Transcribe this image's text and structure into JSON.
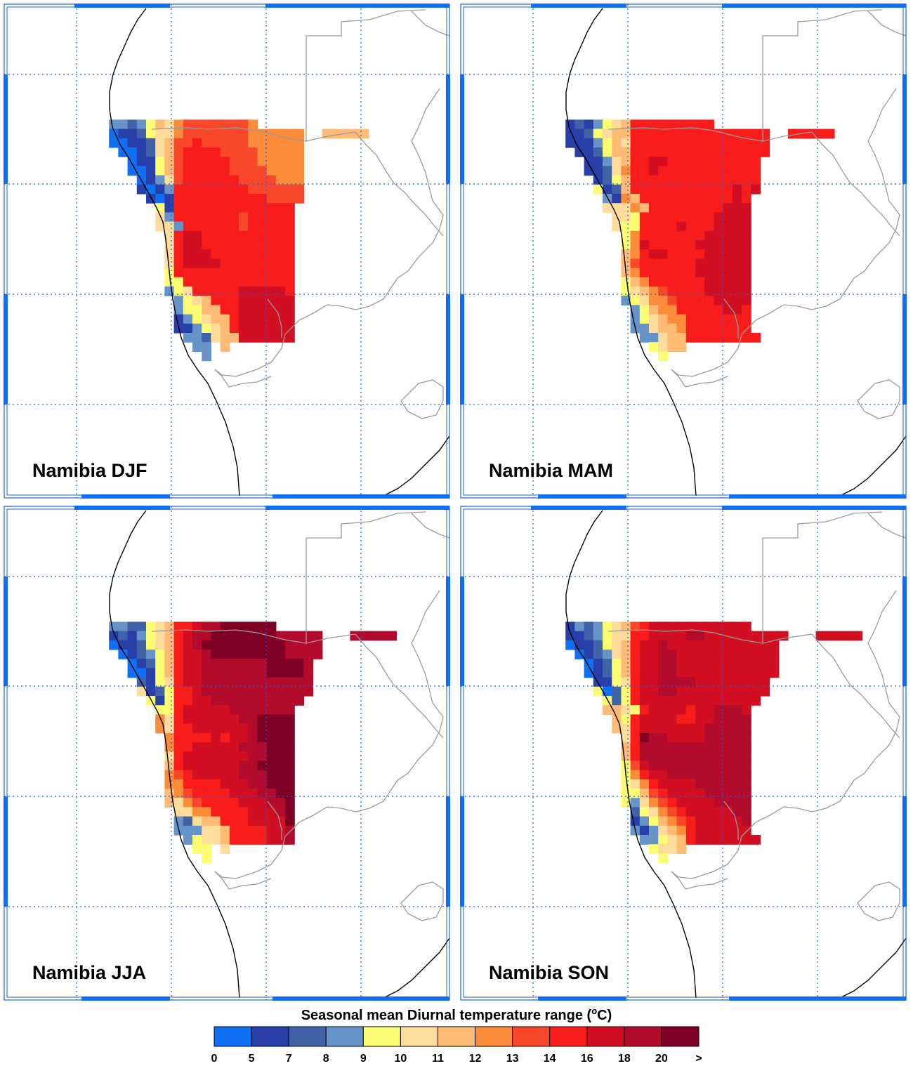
{
  "chart_data": {
    "type": "heatmap",
    "title": "Seasonal mean Diurnal temperature range",
    "unit_base": "o",
    "unit_sup": "o",
    "unit_letter": "C",
    "colorbar": {
      "tick_labels": [
        "0",
        "5",
        "7",
        "8",
        "9",
        "10",
        "11",
        "12",
        "13",
        "14",
        "16",
        "18",
        "20",
        ">"
      ],
      "colors": [
        "#0f6ff5",
        "#283ea8",
        "#3f62a8",
        "#6694c8",
        "#fcfd72",
        "#fddc9c",
        "#fdbb76",
        "#fb8c39",
        "#f9472c",
        "#f81c1a",
        "#d20f22",
        "#b30b2b",
        "#7e0125"
      ]
    },
    "panels": [
      {
        "label": "Namibia DJF",
        "grid": [
          ". . . . . . . . . . . . . . . . . . . . . . . . . . . . . . . . . . . . . . . . . . . . . . . . . .",
          ". . . . . . . . . . . . . . . . . . . . . . . . . . . . . . . . . . . . . . . . . . . . . . . . . .",
          ". . . . . . . . . . . . . . . . . . . . . . . . . . . . . . . . . . . . . . . . . . . . . . . . . .",
          ". . . . . . . . . . . . . . . . . . . . . . . . . . . . . . . . . . . . . . . . . . . . . . . . . .",
          ". . . . . . . . . . . . . . . . . . . . . . . . . . . . . . . . . . . . . . . . . . . . . . . . . .",
          ". . . . . . . . . . . . . . . . . . . . . . . . . . . . . . . . . . . . . . . . . . . . . . . . . .",
          ". . . . . . . . . . . . . . . . . . . . . . . . . . . . . . . . . . . . . . . . . . . . . . . . . .",
          ". . . . . . . . . . . . . . . . . . . . . . . . . . . . . . . . . . . . . . . . . . . . . . . . . .",
          ". . . . . . . . . . . . . . . . . . . . . . . . . . . . . . . . . . . . . . . . . . . . . . . . . .",
          ". . . . . . . . . . . . . . . . . . . . . . . . . . . . . . . . . . . . . . . . . . . . . . . . . .",
          ". . . . . . . . . . . . . . . . . . . . . . . . . . . . . . . . . . . . . . . . . . . . . . . . . .",
          ". . . . . . . . . . . . . . . . . . . . . . . . . . . . . . . . . . . . . . . . . . . . . . . . . .",
          ". . . . . . . . . . . 3 3 2 3 4 6 5 7 8 8 8 8 8 8 8 7 . . . . . . . . . . . . . . . . . . . . . . .",
          ". . . . . . . . . . . 0 1 1 2 4 5 5 7 8 8 8 8 8 8 8 7 7 7 7 7 7 . . 6 6 6 6 6 . . . . . . . . . . .",
          ". . . . . . . . . . . 0 0 1 1 2 5 6 8 8 9 8 8 8 8 8 7 7 7 7 7 7 . . . . . . . . . . . . . . . . . .",
          ". . . . . . . . . . . . 0 0 1 2 5 6 8 9 9 9 9 8 8 8 8 7 7 7 7 7 . . . . . . . . . . . . . . . . . .",
          ". . . . . . . . . . . . . 0 1 1 4 6 8 9 9 9 9 9 8 8 8 7 7 7 7 7 . . . . . . . . . . . . . . . . . .",
          ". . . . . . . . . . . . . 0 0 1 4 6 8 9 9 9 9 9 8 8 8 8 7 7 7 7 . . . . . . . . . . . . . . . . . .",
          ". . . . . . . . . . . . . . 0 1 3 5 8 9 9 9 9 9 9 8 8 8 8 7 7 7 . . . . . . . . . . . . . . . . . .",
          ". . . . . . . . . . . . . . 1 0 1 3 9 9 9 9 9 9 9 9 8 8 8 8 8 8 . . . . . . . . . . . . . . . . . .",
          ". . . . . . . . . . . . . . . 1 0 1 9 9 9 9 9 9 9 9 9 9 8 8 8 8 . . . . . . . . . . . . . . . . . .",
          ". . . . . . . . . . . . . . . . 4 1 9 9 9 9 9 9 9 9 9 9 9 9 9 . . . . . . . . . . . . . . . . . . .",
          ". . . . . . . . . . . . . . . . 5 3 9 9 9 9 9 9 9 8 9 9 9 9 9 . . . . . . . . . . . . . . . . . . .",
          ". . . . . . . . . . . . . . . . 5 5 3 9 9 9 9 9 9 8 9 9 9 9 9 . . . . . . . . . . . . . . . . . . .",
          ". . . . . . . . . . . . . . . . . 5 9 10 10 9 9 9 9 9 9 9 9 9 9 . . . . . . . . . . . . . . . . . . .",
          ". . . . . . . . . . . . . . . . . 5 9 10 10 9 9 9 9 9 9 9 9 9 9 . . . . . . . . . . . . . . . . . . .",
          ". . . . . . . . . . . . . . . . . 5 9 10 10 10 9 9 9 9 9 9 9 9 9 . . . . . . . . . . . . . . . . . . .",
          ". . . . . . . . . . . . . . . . . 5 9 10 10 10 10 9 9 9 9 9 9 9 9 . . . . . . . . . . . . . . . . . . .",
          ". . . . . . . . . . . . . . . . . 4 9 9 9 9 9 9 9 9 9 9 9 9 9 . . . . . . . . . . . . . . . . . . .",
          ". . . . . . . . . . . . . . . . . 4 4 9 9 9 9 9 9 9 9 9 9 9 9 . . . . . . . . . . . . . . . . . . .",
          ". . . . . . . . . . . . . . . . . 3 4 5 9 9 9 9 9 10 10 10 10 10 9 . . . . . . . . . . . . . . . . . . .",
          ". . . . . . . . . . . . . . . . . . 3 4 5 6 9 9 9 10 10 10 10 10 10 . . . . . . . . . . . . . . . . . . .",
          ". . . . . . . . . . . . . . . . . . 3 4 4 6 6 9 9 10 10 10 10 10 10 . . . . . . . . . . . . . . . . . . .",
          ". . . . . . . . . . . . . . . . . . 1 3 4 5 6 6 9 10 10 10 10 10 10 . . . . . . . . . . . . . . . . . . .",
          ". . . . . . . . . . . . . . . . . . 1 1 3 4 5 6 9 10 10 10 10 10 10 . . . . . . . . . . . . . . . . . . .",
          ". . . . . . . . . . . . . . . . . . . 3 3 2 5 6 6 10 10 10 10 10 10 . . . . . . . . . . . . . . . . . . .",
          ". . . . . . . . . . . . . . . . . . . . 3 3 . 6 . . . . . . . . . . . . . . . . . . . . . . . . . . .",
          ". . . . . . . . . . . . . . . . . . . . . 3 . . . . . . . . . . . . . . . . . . . . . . . . . . . . .",
          ". . . . . . . . . . . . . . . . . . . . . . . . . . . . . . . . . . . . . . . . . . . . . . . . . .",
          ". . . . . . . . . . . . . . . . . . . . . . . . . . . . . . . . . . . . . . . . . . . . . . . . . ."
        ]
      },
      {
        "label": "Namibia MAM",
        "grid": [
          ". . . . . . . . . . . . . . . . . . . . . . . . . . . . . . . . . . . . . . . . . . . . . . . . . .",
          ". . . . . . . . . . . . . . . . . . . . . . . . . . . . . . . . . . . . . . . . . . . . . . . . . .",
          ". . . . . . . . . . . . . . . . . . . . . . . . . . . . . . . . . . . . . . . . . . . . . . . . . .",
          ". . . . . . . . . . . . . . . . . . . . . . . . . . . . . . . . . . . . . . . . . . . . . . . . . .",
          ". . . . . . . . . . . . . . . . . . . . . . . . . . . . . . . . . . . . . . . . . . . . . . . . . .",
          ". . . . . . . . . . . . . . . . . . . . . . . . . . . . . . . . . . . . . . . . . . . . . . . . . .",
          ". . . . . . . . . . . . . . . . . . . . . . . . . . . . . . . . . . . . . . . . . . . . . . . . . .",
          ". . . . . . . . . . . . . . . . . . . . . . . . . . . . . . . . . . . . . . . . . . . . . . . . . .",
          ". . . . . . . . . . . . . . . . . . . . . . . . . . . . . . . . . . . . . . . . . . . . . . . . . .",
          ". . . . . . . . . . . . . . . . . . . . . . . . . . . . . . . . . . . . . . . . . . . . . . . . . .",
          ". . . . . . . . . . . . . . . . . . . . . . . . . . . . . . . . . . . . . . . . . . . . . . . . . .",
          ". . . . . . . . . . . . . . . . . . . . . . . . . . . . . . . . . . . . . . . . . . . . . . . . . .",
          ". . . . . . . . . . . 1 2 1 3 4 5 6 9 9 9 9 9 9 9 9 9 . . . . . . . . . . . . . . . . . . . . . . .",
          ". . . . . . . . . . . 1 1 2 4 5 6 6 9 9 9 9 9 9 9 9 9 9 9 9 9 9 9 . . 9 9 9 9 9 . . . . . . . . . . .",
          ". . . . . . . . . . . 1 1 1 3 4 6 5 9 9 9 9 9 9 9 9 9 9 9 9 9 9 9 . . . . . . . . . . . . . . . . . .",
          ". . . . . . . . . . . . 1 1 2 4 6 6 9 9 9 9 9 9 9 9 9 9 9 9 9 9 9 . . . . . . . . . . . . . . . . . .",
          ". . . . . . . . . . . . . 1 1 3 5 6 9 9 10 10 9 9 9 9 9 9 9 9 9 9 . . . . . . . . . . . . . . . . . .",
          ". . . . . . . . . . . . . 1 1 2 5 7 9 9 10 9 9 9 9 9 9 9 9 9 9 9 . . . . . . . . . . . . . . . . . .",
          ". . . . . . . . . . . . . . 1 2 4 6 9 9 9 9 9 9 9 9 9 9 9 9 9 9 . . . . . . . . . . . . . . . . . .",
          ". . . . . . . . . . . . . . 4 1 2 6 9 9 9 9 9 9 9 9 9 9 9 10 9 10 . . . . . . . . . . . . . . . . . .",
          ". . . . . . . . . . . . . . . 3 1 7 6 9 9 9 9 9 9 9 9 9 9 10 9 . . . . . . . . . . . . . . . . . .",
          ". . . . . . . . . . . . . . . 5 5 5 7 6 9 9 9 9 9 9 9 9 10 10 10 . . . . . . . . . . . . . . . . . . .",
          ". . . . . . . . . . . . . . . . 5 5 4 9 9 9 9 9 9 9 9 10 10 10 10 . . . . . . . . . . . . . . . . . . .",
          ". . . . . . . . . . . . . . . . 5 4 4 9 9 9 9 10 9 9 9 10 10 10 10 . . . . . . . . . . . . . . . . . . .",
          ". . . . . . . . . . . . . . . . . 4 7 9 9 9 9 9 9 9 10 10 10 10 10 . . . . . . . . . . . . . . . . . . .",
          ". . . . . . . . . . . . . . . . . 4 7 10 9 9 9 9 9 10 10 10 10 10 10 . . . . . . . . . . . . . . . . . . .",
          ". . . . . . . . . . . . . . . . . 6 7 9 10 10 9 9 9 9 10 10 10 10 10 . . . . . . . . . . . . . . . . . . .",
          ". . . . . . . . . . . . . . . . . 6 8 9 9 9 9 9 9 10 10 10 10 10 10 . . . . . . . . . . . . . . . . . . .",
          ". . . . . . . . . . . . . . . . . 6 7 9 9 9 9 9 9 10 10 10 10 10 10 . . . . . . . . . . . . . . . . . . .",
          ". . . . . . . . . . . . . . . . . 4 6 7 9 9 9 9 9 9 10 10 10 10 10 . . . . . . . . . . . . . . . . . . .",
          ". . . . . . . . . . . . . . . . . 4 5 6 7 8 9 9 9 9 10 10 10 10 10 . . . . . . . . . . . . . . . . . . .",
          ". . . . . . . . . . . . . . . . . 3 4 5 7 7 8 9 9 9 9 10 10 10 10 . . . . . . . . . . . . . . . . . . .",
          ". . . . . . . . . . . . . . . . . . 3 4 6 7 7 9 9 9 9 9 10 10 9 . . . . . . . . . . . . . . . . . . .",
          ". . . . . . . . . . . . . . . . . . 3 4 5 6 7 7 9 9 9 9 9 9 9 . . . . . . . . . . . . . . . . . . .",
          ". . . . . . . . . . . . . . . . . . 3 3 5 6 6 7 9 9 9 9 9 9 9 . . . . . . . . . . . . . . . . . . .",
          ". . . . . . . . . . . . . . . . . . . 3 3 5 6 6 9 9 9 9 9 9 9 9 . . . . . . . . . . . . . . . . . . .",
          ". . . . . . . . . . . . . . . . . . . . 4 5 6 6 . . . . . . . . . . . . . . . . . . . . . . . . . . .",
          ". . . . . . . . . . . . . . . . . . . . . 4 . . . . . . . . . . . . . . . . . . . . . . . . . . . . .",
          ". . . . . . . . . . . . . . . . . . . . . . . . . . . . . . . . . . . . . . . . . . . . . . . . . .",
          ". . . . . . . . . . . . . . . . . . . . . . . . . . . . . . . . . . . . . . . . . . . . . . . . . ."
        ]
      },
      {
        "label": "Namibia JJA",
        "grid": [
          ". . . . . . . . . . . . . . . . . . . . . . . . . . . . . . . . . . . . . . . . . . . . . . . . . .",
          ". . . . . . . . . . . . . . . . . . . . . . . . . . . . . . . . . . . . . . . . . . . . . . . . . .",
          ". . . . . . . . . . . . . . . . . . . . . . . . . . . . . . . . . . . . . . . . . . . . . . . . . .",
          ". . . . . . . . . . . . . . . . . . . . . . . . . . . . . . . . . . . . . . . . . . . . . . . . . .",
          ". . . . . . . . . . . . . . . . . . . . . . . . . . . . . . . . . . . . . . . . . . . . . . . . . .",
          ". . . . . . . . . . . . . . . . . . . . . . . . . . . . . . . . . . . . . . . . . . . . . . . . . .",
          ". . . . . . . . . . . . . . . . . . . . . . . . . . . . . . . . . . . . . . . . . . . . . . . . . .",
          ". . . . . . . . . . . . . . . . . . . . . . . . . . . . . . . . . . . . . . . . . . . . . . . . . .",
          ". . . . . . . . . . . . . . . . . . . . . . . . . . . . . . . . . . . . . . . . . . . . . . . . . .",
          ". . . . . . . . . . . . . . . . . . . . . . . . . . . . . . . . . . . . . . . . . . . . . . . . . .",
          ". . . . . . . . . . . . . . . . . . . . . . . . . . . . . . . . . . . . . . . . . . . . . . . . . .",
          ". . . . . . . . . . . . . . . . . . . . . . . . . . . . . . . . . . . . . . . . . . . . . . . . . .",
          ". . . . . . . . . . . 3 3 2 2 4 5 6 9 9 10 11 11 12 12 12 12 12 12 . . . . . . . . . . . . . . . . . . . . . . .",
          ". . . . . . . . . . . 1 2 1 3 4 5 6 9 10 11 11 12 12 12 12 12 12 12 11 11 11 11 11 . . . 11 11 11 11 11 . . . . . . . . . . .",
          ". . . . . . . . . . . 0 1 1 2 4 5 6 9 10 11 12 12 12 12 12 12 12 12 12 11 11 11 11 . . . . . . . . . . . . . . . . . .",
          ". . . . . . . . . . . . 0 1 2 3 4 6 9 10 10 11 12 12 12 12 12 12 12 12 11 11 11 11 . . . . . . . . . . . . . . . . . .",
          ". . . . . . . . . . . . . 0 1 2 4 6 9 10 10 11 11 11 11 11 11 11 12 12 12 12 11 . . . . . . . . . . . . . . . . . .",
          ". . . . . . . . . . . . . 0 0 1 4 6 9 10 10 11 11 11 11 11 11 11 12 12 12 12 11 . . . . . . . . . . . . . . . . . .",
          ". . . . . . . . . . . . . . 2 1 4 5 9 10 10 11 11 11 11 11 11 11 11 11 11 11 11 . . . . . . . . . . . . . . . . . .",
          ". . . . . . . . . . . . . . 5 1 2 4 9 9 10 11 11 11 11 11 11 11 11 11 11 11 11 . . . . . . . . . . . . . . . . . .",
          ". . . . . . . . . . . . . . . 4 1 4 9 9 10 10 11 11 11 11 11 11 11 11 11 11 . . . . . . . . . . . . . . . . . .",
          ". . . . . . . . . . . . . . . . 4 4 9 10 10 10 10 10 11 11 11 11 11 11 11 . . . . . . . . . . . . . . . . . . .",
          ". . . . . . . . . . . . . . . . 7 5 9 10 10 10 10 10 10 11 11 12 12 12 12 . . . . . . . . . . . . . . . . . . .",
          ". . . . . . . . . . . . . . . . 7 5 9 9 10 10 10 10 10 10 11 12 12 12 12 . . . . . . . . . . . . . . . . . . .",
          ". . . . . . . . . . . . . . . . . 7 9 9 9 9 10 9 10 10 11 12 12 12 12 . . . . . . . . . . . . . . . . . . .",
          ". . . . . . . . . . . . . . . . . 7 9 9 10 10 10 10 10 11 11 11 12 12 12 . . . . . . . . . . . . . . . . . . .",
          ". . . . . . . . . . . . . . . . . 5 9 10 10 10 10 10 10 10 11 11 12 12 12 . . . . . . . . . . . . . . . . . . .",
          ". . . . . . . . . . . . . . . . . 6 9 10 10 10 10 10 10 11 11 12 12 12 12 . . . . . . . . . . . . . . . . . . .",
          ". . . . . . . . . . . . . . . . . 7 8 9 10 10 10 10 10 11 11 11 12 12 12 . . . . . . . . . . . . . . . . . . .",
          ". . . . . . . . . . . . . . . . . 7 7 9 9 9 9 10 10 10 11 11 12 12 12 . . . . . . . . . . . . . . . . . . .",
          ". . . . . . . . . . . . . . . . . 6 7 8 9 9 9 9 10 10 10 11 11 12 12 . . . . . . . . . . . . . . . . . . .",
          ". . . . . . . . . . . . . . . . . 6 5 7 8 9 9 9 9 10 10 10 11 11 12 . . . . . . . . . . . . . . . . . . .",
          ". . . . . . . . . . . . . . . . . . 5 5 7 7 9 9 9 9 10 10 10 11 12 . . . . . . . . . . . . . . . . . . .",
          ". . . . . . . . . . . . . . . . . . 3 2 5 6 6 9 9 9 10 10 10 10 12 . . . . . . . . . . . . . . . . . . .",
          ". . . . . . . . . . . . . . . . . . 3 3 3 5 5 6 9 9 9 9 10 10 11 . . . . . . . . . . . . . . . . . . .",
          ". . . . . . . . . . . . . . . . . . . 3 4 5 5 6 9 9 9 9 10 10 11 . . . . . . . . . . . . . . . . . . .",
          ". . . . . . . . . . . . . . . . . . . . 4 4 . 5 . . . . . . . . . . . . . . . . . . . . . . . . . . .",
          ". . . . . . . . . . . . . . . . . . . . . 4 . . . . . . . . . . . . . . . . . . . . . . . . . . . . .",
          ". . . . . . . . . . . . . . . . . . . . . . . . . . . . . . . . . . . . . . . . . . . . . . . . . .",
          ". . . . . . . . . . . . . . . . . . . . . . . . . . . . . . . . . . . . . . . . . . . . . . . . . ."
        ]
      },
      {
        "label": "Namibia SON",
        "grid": [
          ". . . . . . . . . . . . . . . . . . . . . . . . . . . . . . . . . . . . . . . . . . . . . . . . . .",
          ". . . . . . . . . . . . . . . . . . . . . . . . . . . . . . . . . . . . . . . . . . . . . . . . . .",
          ". . . . . . . . . . . . . . . . . . . . . . . . . . . . . . . . . . . . . . . . . . . . . . . . . .",
          ". . . . . . . . . . . . . . . . . . . . . . . . . . . . . . . . . . . . . . . . . . . . . . . . . .",
          ". . . . . . . . . . . . . . . . . . . . . . . . . . . . . . . . . . . . . . . . . . . . . . . . . .",
          ". . . . . . . . . . . . . . . . . . . . . . . . . . . . . . . . . . . . . . . . . . . . . . . . . .",
          ". . . . . . . . . . . . . . . . . . . . . . . . . . . . . . . . . . . . . . . . . . . . . . . . . .",
          ". . . . . . . . . . . . . . . . . . . . . . . . . . . . . . . . . . . . . . . . . . . . . . . . . .",
          ". . . . . . . . . . . . . . . . . . . . . . . . . . . . . . . . . . . . . . . . . . . . . . . . . .",
          ". . . . . . . . . . . . . . . . . . . . . . . . . . . . . . . . . . . . . . . . . . . . . . . . . .",
          ". . . . . . . . . . . . . . . . . . . . . . . . . . . . . . . . . . . . . . . . . . . . . . . . . .",
          ". . . . . . . . . . . . . . . . . . . . . . . . . . . . . . . . . . . . . . . . . . . . . . . . . .",
          ". . . . . . . . . . . 1 3 2 3 4 5 6 8 9 10 10 10 10 10 10 10 10 10 10 10 . . . . . . . . . . . . . . . . . . . . . . .",
          ". . . . . . . . . . . 1 1 2 3 4 5 5 9 9 10 10 10 10 11 11 10 10 10 10 10 10 10 10 10 . . . 10 10 10 10 10 . . . . . . . . . . .",
          ". . . . . . . . . . . 0 1 1 2 4 5 6 9 10 10 11 10 10 10 10 10 10 10 10 10 10 10 10 . . . . . . . . . . . . . . . . . .",
          ". . . . . . . . . . . . 0 1 2 3 5 6 9 10 10 11 11 10 10 10 10 10 10 10 10 10 10 10 . . . . . . . . . . . . . . . . . .",
          ". . . . . . . . . . . . . 0 1 2 4 6 9 10 10 11 11 10 10 10 10 10 10 10 10 10 10 10 . . . . . . . . . . . . . . . . . .",
          ". . . . . . . . . . . . . 0 1 2 4 6 9 10 10 11 11 10 10 10 10 10 10 10 10 10 10 10 . . . . . . . . . . . . . . . . . .",
          ". . . . . . . . . . . . . . 1 1 4 5 9 10 10 11 11 11 11 10 10 10 10 10 10 10 10 . . . . . . . . . . . . . . . . . .",
          ". . . . . . . . . . . . . . 4 0 2 4 9 10 10 11 11 10 10 10 10 10 10 10 10 10 10 . . . . . . . . . . . . . . . . . .",
          ". . . . . . . . . . . . . . . 4 2 4 9 10 10 10 10 10 10 10 10 10 10 10 10 10 . . . . . . . . . . . . . . . . . .",
          ". . . . . . . . . . . . . . . 6 6 5 4 9 10 10 10 10 9 10 10 11 11 11 10 . . . . . . . . . . . . . . . . . . .",
          ". . . . . . . . . . . . . . . . 6 4 9 10 10 10 10 9 9 10 10 11 11 11 11 . . . . . . . . . . . . . . . . . . .",
          ". . . . . . . . . . . . . . . . 6 5 9 10 10 10 10 10 10 10 11 11 11 11 11 . . . . . . . . . . . . . . . . . . .",
          ". . . . . . . . . . . . . . . . . 5 9 12 11 11 10 10 10 10 11 11 11 11 11 . . . . . . . . . . . . . . . . . . .",
          ". . . . . . . . . . . . . . . . . 6 9 11 11 11 11 11 11 11 11 11 11 11 11 . . . . . . . . . . . . . . . . . . .",
          ". . . . . . . . . . . . . . . . . 6 9 11 11 11 11 11 11 11 11 11 11 11 11 . . . . . . . . . . . . . . . . . . .",
          ". . . . . . . . . . . . . . . . . 4 8 10 11 11 11 11 11 11 11 11 11 11 11 . . . . . . . . . . . . . . . . . . .",
          ". . . . . . . . . . . . . . . . . 4 7 9 10 10 11 11 11 11 11 11 11 11 11 . . . . . . . . . . . . . . . . . . .",
          ". . . . . . . . . . . . . . . . . 4 5 7 9 10 10 10 10 11 11 11 11 11 11 . . . . . . . . . . . . . . . . . . .",
          ". . . . . . . . . . . . . . . . . 4 4 6 8 9 10 10 10 10 11 11 11 11 11 . . . . . . . . . . . . . . . . . . .",
          ". . . . . . . . . . . . . . . . . 4 3 5 7 8 9 10 10 10 10 11 11 11 11 . . . . . . . . . . . . . . . . . . .",
          ". . . . . . . . . . . . . . . . . . 2 4 5 7 8 9 10 10 10 10 10 11 11 . . . . . . . . . . . . . . . . . . .",
          ". . . . . . . . . . . . . . . . . . 1 3 4 6 7 8 9 10 10 10 10 10 11 . . . . . . . . . . . . . . . . . . .",
          ". . . . . . . . . . . . . . . . . . 3 1 3 5 6 7 9 10 10 10 10 10 10 . . . . . . . . . . . . . . . . . . .",
          ". . . . . . . . . . . . . . . . . . . 3 3 4 5 6 9 10 10 10 10 10 10 10 . . . . . . . . . . . . . . . . . . .",
          ". . . . . . . . . . . . . . . . . . . . 4 5 5 6 . . . . . . . . . . . . . . . . . . . . . . . . . . .",
          ". . . . . . . . . . . . . . . . . . . . . 4 . . . . . . . . . . . . . . . . . . . . . . . . . . . . .",
          ". . . . . . . . . . . . . . . . . . . . . . . . . . . . . . . . . . . . . . . . . . . . . . . . . .",
          ". . . . . . . . . . . . . . . . . . . . . . . . . . . . . . . . . . . . . . . . . . . . . . . . . ."
        ]
      }
    ]
  }
}
